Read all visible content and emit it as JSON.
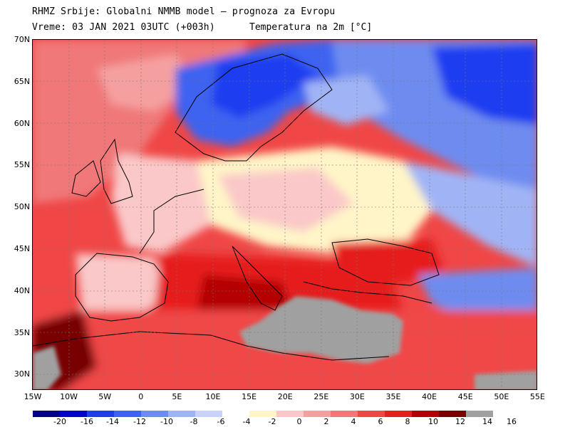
{
  "header": {
    "line1": "RHMZ Srbije: Globalni NMMB model — prognoza za Evropu",
    "line2": "Vreme: 03 JAN 2021 03UTC (+003h)",
    "field": "Temperatura na 2m [°C]"
  },
  "lat_labels": [
    "70N",
    "65N",
    "60N",
    "55N",
    "50N",
    "45N",
    "40N",
    "35N",
    "30N"
  ],
  "lon_labels": [
    "15W",
    "10W",
    "5W",
    "0",
    "5E",
    "10E",
    "15E",
    "20E",
    "25E",
    "30E",
    "35E",
    "40E",
    "45E",
    "50E",
    "55E"
  ],
  "colorbar": {
    "colors": [
      "#000080",
      "#0000cc",
      "#1e3cf0",
      "#3c64f0",
      "#6e8cf0",
      "#a0b4f5",
      "#c8d2fa",
      "#ffffff",
      "#fff5c8",
      "#fac8c8",
      "#f5a0a0",
      "#f07878",
      "#f04646",
      "#e61e1e",
      "#b40000",
      "#780000",
      "#a0a0a0"
    ],
    "labels": [
      "-20",
      "-16",
      "-14",
      "-12",
      "-10",
      "-8",
      "-6",
      "-4",
      "-2",
      "0",
      "2",
      "4",
      "6",
      "8",
      "10",
      "12",
      "14",
      "16"
    ]
  }
}
